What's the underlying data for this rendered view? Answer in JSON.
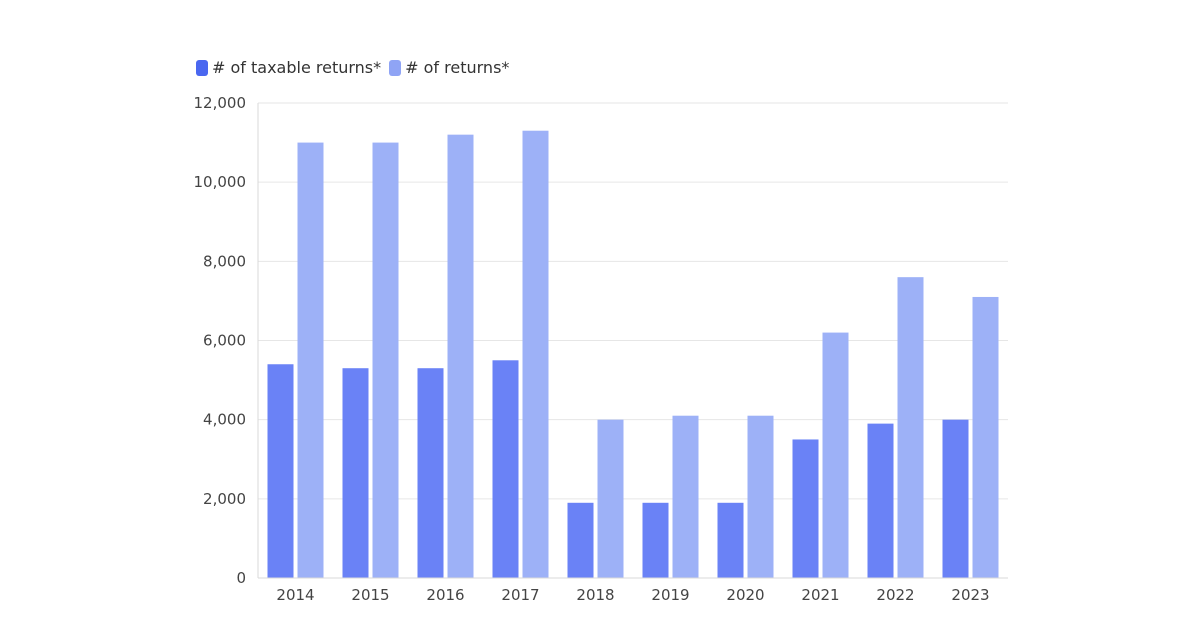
{
  "chart_data": {
    "type": "bar",
    "title": "",
    "xlabel": "",
    "ylabel": "",
    "categories": [
      "2014",
      "2015",
      "2016",
      "2017",
      "2018",
      "2019",
      "2020",
      "2021",
      "2022",
      "2023"
    ],
    "series": [
      {
        "name": "# of taxable returns*",
        "color": "#6a82f6",
        "legend_color": "#4a67f0",
        "values": [
          5400,
          5300,
          5300,
          5500,
          1900,
          1900,
          1900,
          3500,
          3900,
          4000
        ]
      },
      {
        "name": "# of returns*",
        "color": "#9db1f7",
        "legend_color": "#8fa4f5",
        "values": [
          11000,
          11000,
          11200,
          11300,
          4000,
          4100,
          4100,
          6200,
          7600,
          7100
        ]
      }
    ],
    "ylim": [
      0,
      12000
    ],
    "yticks": [
      0,
      2000,
      4000,
      6000,
      8000,
      10000,
      12000
    ],
    "ytick_labels": [
      "0",
      "2,000",
      "4,000",
      "6,000",
      "8,000",
      "10,000",
      "12,000"
    ],
    "grid": true,
    "legend_position": "top-left"
  }
}
